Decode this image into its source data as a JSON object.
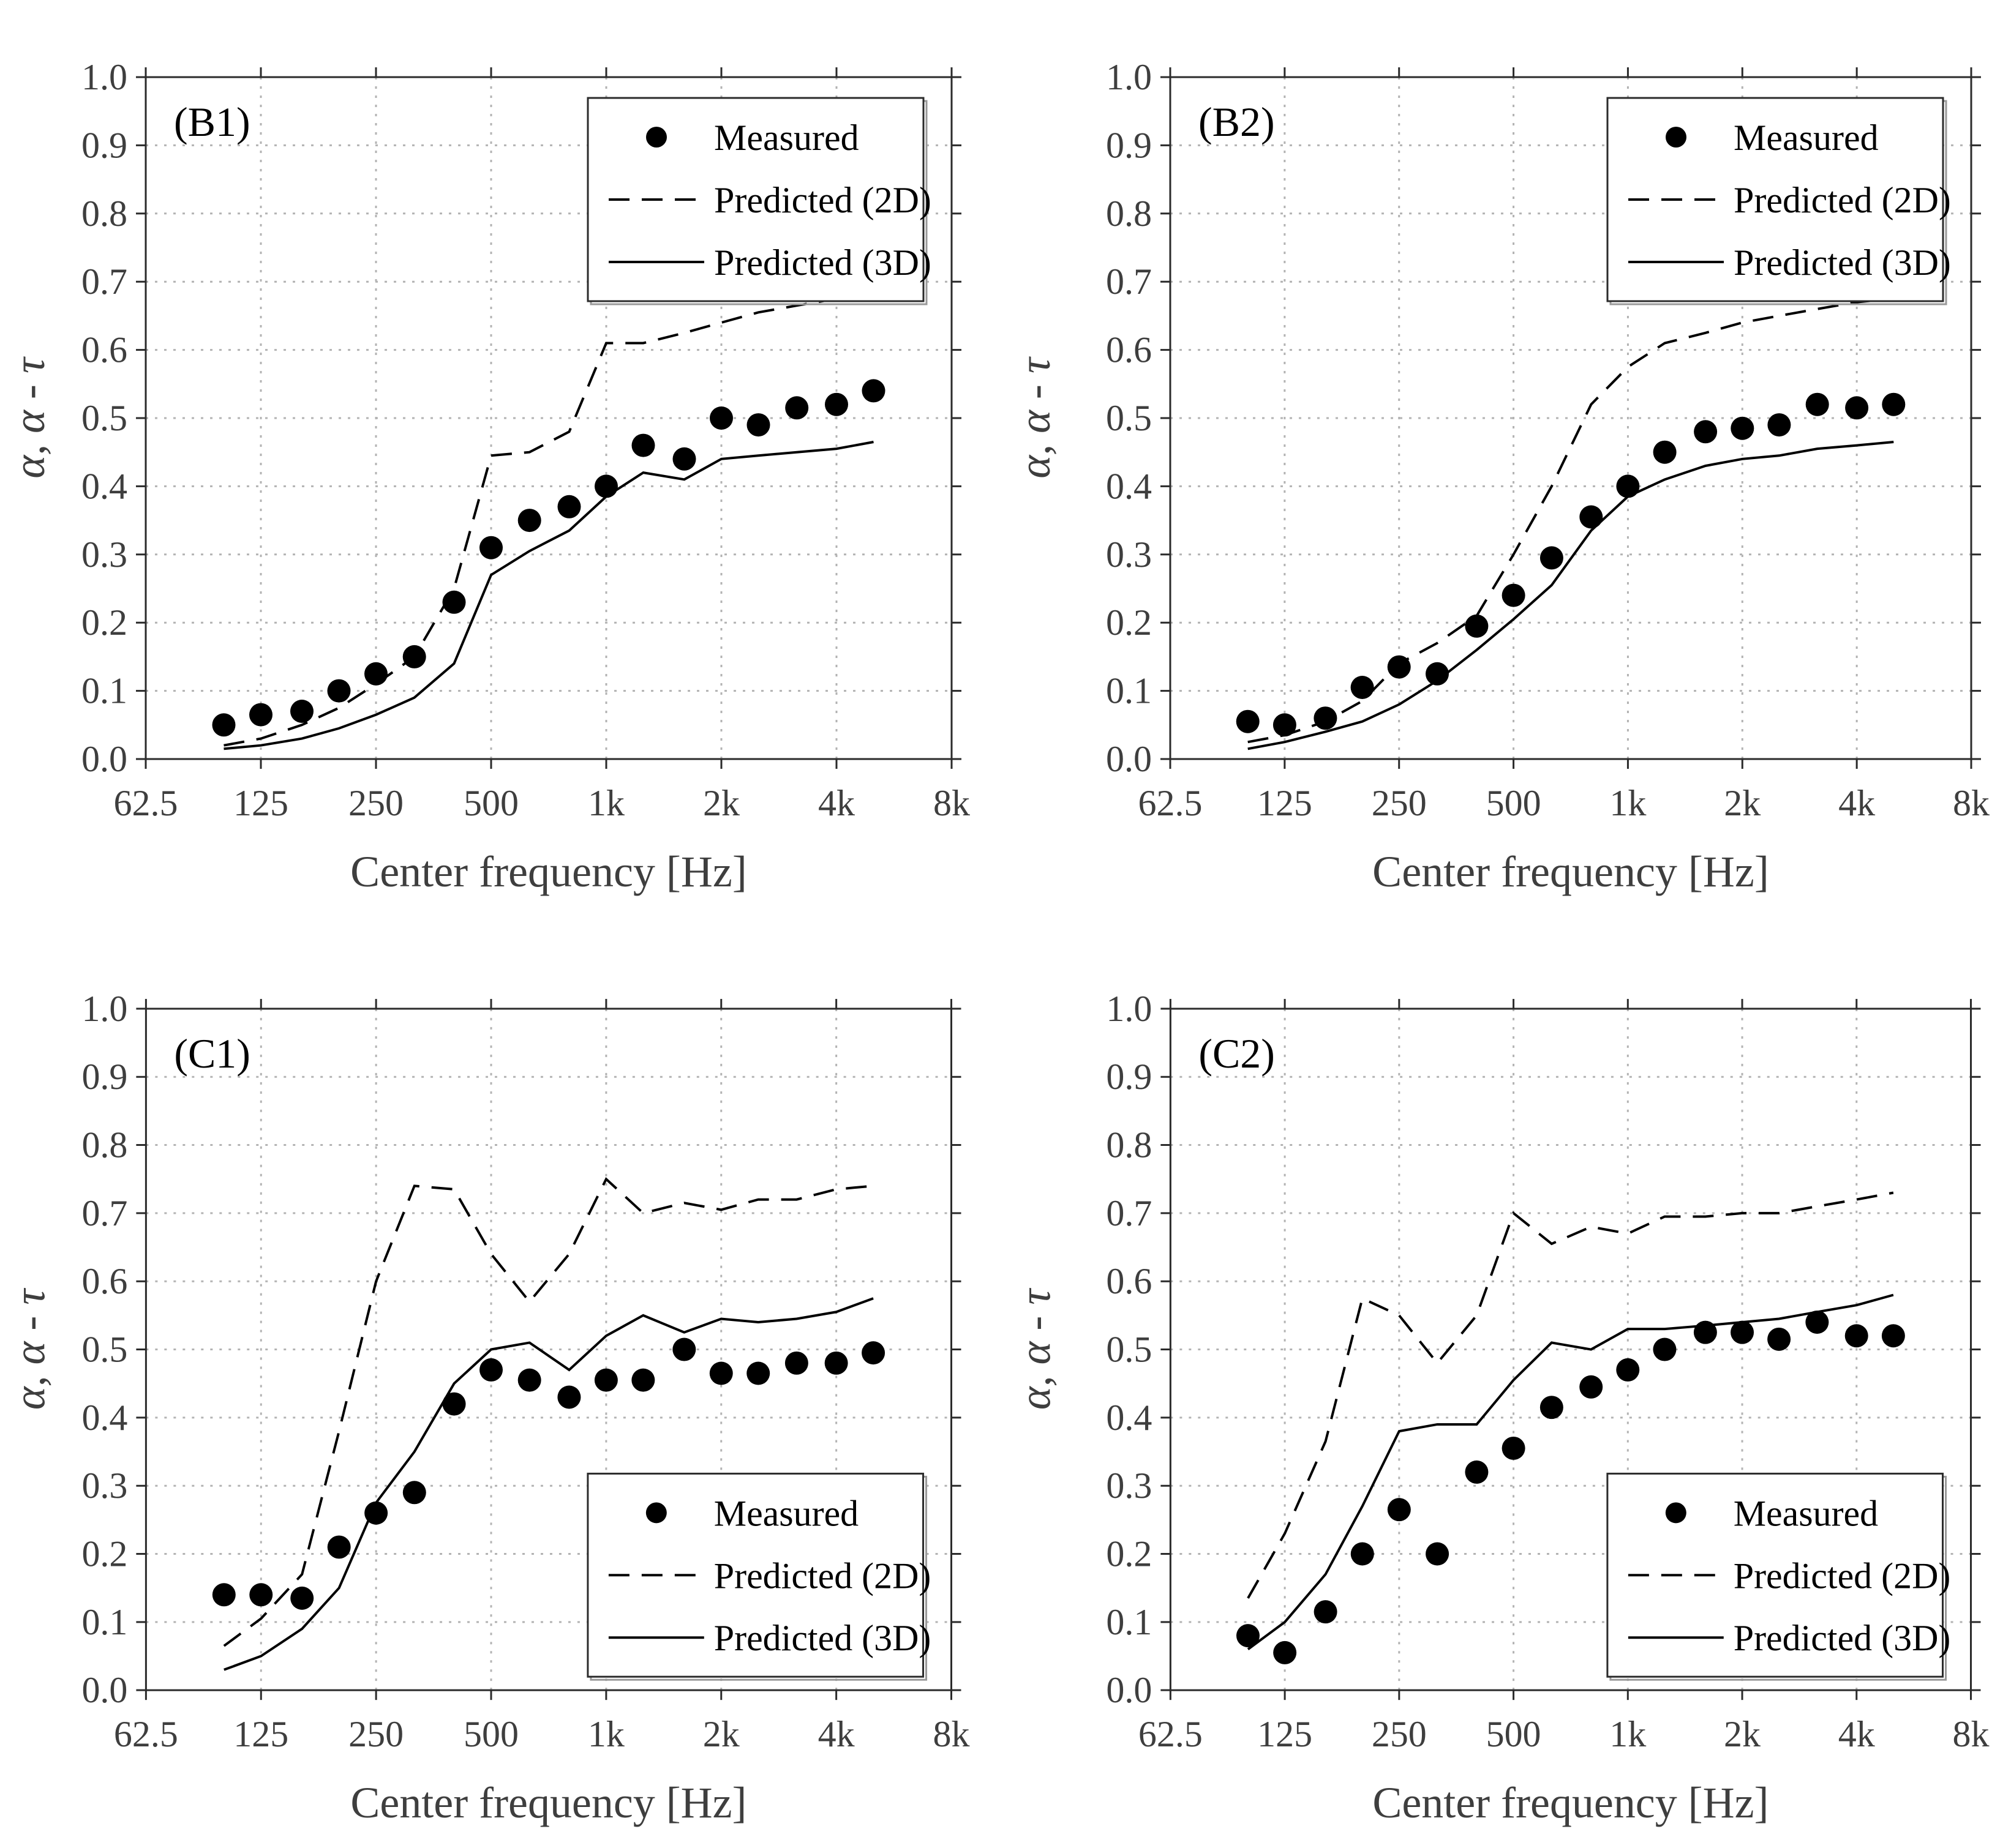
{
  "figure": {
    "background": "#ffffff",
    "axis_color": "#2b2b2b",
    "tick_label_color": "#3e3e3e",
    "grid_color": "#b3b3b3",
    "series_color": "#000000",
    "xlabel": "Center frequency [Hz]",
    "ylabel": "α, α - τ",
    "x_tick_labels": [
      "62.5",
      "125",
      "250",
      "500",
      "1k",
      "2k",
      "4k",
      "8k"
    ],
    "y_tick_labels": [
      "0.0",
      "0.1",
      "0.2",
      "0.3",
      "0.4",
      "0.5",
      "0.6",
      "0.7",
      "0.8",
      "0.9",
      "1.0"
    ],
    "legend_labels": [
      "Measured",
      "Predicted (2D)",
      "Predicted (3D)"
    ]
  },
  "chart_data": [
    {
      "type": "line",
      "panel_label": "(B1)",
      "legend_position": "top-right",
      "x_scale": "log",
      "xlim_hz": [
        62.5,
        8000
      ],
      "ylim": [
        0,
        1
      ],
      "grid": true,
      "x_hz": [
        100,
        125,
        160,
        200,
        250,
        315,
        400,
        500,
        630,
        800,
        1000,
        1250,
        1600,
        2000,
        2500,
        3150,
        4000,
        5000
      ],
      "series": [
        {
          "name": "Measured",
          "style": "dots",
          "values": [
            0.05,
            0.065,
            0.07,
            0.1,
            0.125,
            0.15,
            0.23,
            0.31,
            0.35,
            0.37,
            0.4,
            0.46,
            0.44,
            0.5,
            0.49,
            0.515,
            0.52,
            0.54
          ]
        },
        {
          "name": "Predicted (2D)",
          "style": "dashed",
          "values": [
            0.02,
            0.03,
            0.05,
            0.075,
            0.11,
            0.15,
            0.25,
            0.445,
            0.45,
            0.48,
            0.61,
            0.61,
            0.625,
            0.64,
            0.655,
            0.665,
            0.675,
            0.68
          ]
        },
        {
          "name": "Predicted (3D)",
          "style": "solid",
          "values": [
            0.015,
            0.02,
            0.03,
            0.045,
            0.065,
            0.09,
            0.14,
            0.27,
            0.305,
            0.335,
            0.385,
            0.42,
            0.41,
            0.44,
            0.445,
            0.45,
            0.455,
            0.465
          ]
        }
      ]
    },
    {
      "type": "line",
      "panel_label": "(B2)",
      "legend_position": "top-right",
      "x_scale": "log",
      "xlim_hz": [
        62.5,
        8000
      ],
      "ylim": [
        0,
        1
      ],
      "grid": true,
      "x_hz": [
        100,
        125,
        160,
        200,
        250,
        315,
        400,
        500,
        630,
        800,
        1000,
        1250,
        1600,
        2000,
        2500,
        3150,
        4000,
        5000
      ],
      "series": [
        {
          "name": "Measured",
          "style": "dots",
          "values": [
            0.055,
            0.05,
            0.06,
            0.105,
            0.135,
            0.125,
            0.195,
            0.24,
            0.295,
            0.355,
            0.4,
            0.45,
            0.48,
            0.485,
            0.49,
            0.52,
            0.515,
            0.52
          ]
        },
        {
          "name": "Predicted (2D)",
          "style": "dashed",
          "values": [
            0.025,
            0.035,
            0.055,
            0.085,
            0.14,
            0.17,
            0.21,
            0.3,
            0.4,
            0.52,
            0.575,
            0.61,
            0.625,
            0.64,
            0.65,
            0.66,
            0.67,
            0.675
          ]
        },
        {
          "name": "Predicted (3D)",
          "style": "solid",
          "values": [
            0.015,
            0.025,
            0.04,
            0.055,
            0.08,
            0.115,
            0.16,
            0.205,
            0.255,
            0.335,
            0.385,
            0.41,
            0.43,
            0.44,
            0.445,
            0.455,
            0.46,
            0.465
          ]
        }
      ]
    },
    {
      "type": "line",
      "panel_label": "(C1)",
      "legend_position": "bottom-right",
      "x_scale": "log",
      "xlim_hz": [
        62.5,
        8000
      ],
      "ylim": [
        0,
        1
      ],
      "grid": true,
      "x_hz": [
        100,
        125,
        160,
        200,
        250,
        315,
        400,
        500,
        630,
        800,
        1000,
        1250,
        1600,
        2000,
        2500,
        3150,
        4000,
        5000
      ],
      "series": [
        {
          "name": "Measured",
          "style": "dots",
          "values": [
            0.14,
            0.14,
            0.135,
            0.21,
            0.26,
            0.29,
            0.42,
            0.47,
            0.455,
            0.43,
            0.455,
            0.455,
            0.5,
            0.465,
            0.465,
            0.48,
            0.48,
            0.495
          ]
        },
        {
          "name": "Predicted (2D)",
          "style": "dashed",
          "values": [
            0.065,
            0.105,
            0.17,
            0.38,
            0.6,
            0.74,
            0.735,
            0.64,
            0.57,
            0.64,
            0.75,
            0.7,
            0.715,
            0.705,
            0.72,
            0.72,
            0.735,
            0.74
          ]
        },
        {
          "name": "Predicted (3D)",
          "style": "solid",
          "values": [
            0.03,
            0.05,
            0.09,
            0.15,
            0.275,
            0.35,
            0.45,
            0.5,
            0.51,
            0.47,
            0.52,
            0.55,
            0.525,
            0.545,
            0.54,
            0.545,
            0.555,
            0.575
          ]
        }
      ]
    },
    {
      "type": "line",
      "panel_label": "(C2)",
      "legend_position": "bottom-right",
      "x_scale": "log",
      "xlim_hz": [
        62.5,
        8000
      ],
      "ylim": [
        0,
        1
      ],
      "grid": true,
      "x_hz": [
        100,
        125,
        160,
        200,
        250,
        315,
        400,
        500,
        630,
        800,
        1000,
        1250,
        1600,
        2000,
        2500,
        3150,
        4000,
        5000
      ],
      "series": [
        {
          "name": "Measured",
          "style": "dots",
          "values": [
            0.08,
            0.055,
            0.115,
            0.2,
            0.265,
            0.2,
            0.32,
            0.355,
            0.415,
            0.445,
            0.47,
            0.5,
            0.525,
            0.525,
            0.515,
            0.54,
            0.52,
            0.52
          ]
        },
        {
          "name": "Predicted (2D)",
          "style": "dashed",
          "values": [
            0.135,
            0.23,
            0.365,
            0.575,
            0.55,
            0.48,
            0.55,
            0.7,
            0.655,
            0.68,
            0.67,
            0.695,
            0.695,
            0.7,
            0.7,
            0.71,
            0.72,
            0.73
          ]
        },
        {
          "name": "Predicted (3D)",
          "style": "solid",
          "values": [
            0.06,
            0.1,
            0.17,
            0.27,
            0.38,
            0.39,
            0.39,
            0.455,
            0.51,
            0.5,
            0.53,
            0.53,
            0.535,
            0.54,
            0.545,
            0.555,
            0.565,
            0.58
          ]
        }
      ]
    }
  ]
}
